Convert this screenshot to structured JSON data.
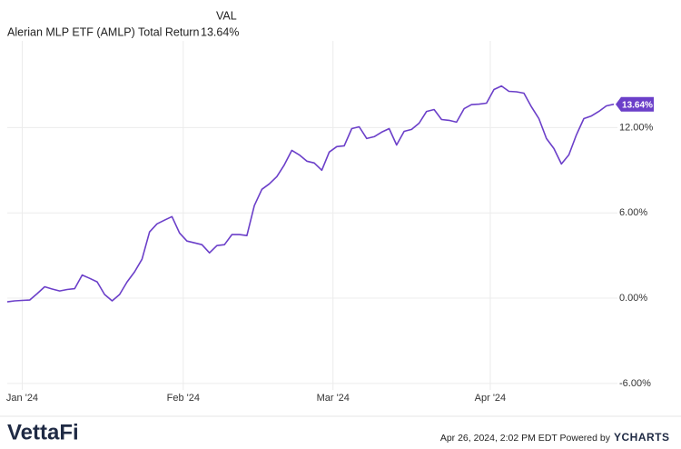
{
  "chart_data": {
    "type": "line",
    "legend_header": "VAL",
    "footer": {
      "timestamp": "Apr 26, 2024, 2:02 PM EDT Powered by",
      "brand": "YCHARTS",
      "logo": "VettaFi"
    },
    "series": [
      {
        "name": "Alerian MLP ETF (AMLP) Total Return",
        "color": "#6b3fc9",
        "last_label": "13.64%",
        "values": [
          -0.26,
          -0.19,
          -0.16,
          -0.13,
          0.32,
          0.8,
          0.64,
          0.51,
          0.61,
          0.67,
          1.63,
          1.4,
          1.15,
          0.26,
          -0.19,
          0.26,
          1.15,
          1.85,
          2.74,
          4.66,
          5.23,
          5.49,
          5.74,
          4.59,
          4.02,
          3.89,
          3.76,
          3.19,
          3.7,
          3.76,
          4.47,
          4.47,
          4.4,
          6.51,
          7.66,
          8.04,
          8.55,
          9.38,
          10.4,
          10.08,
          9.64,
          9.51,
          9.0,
          10.28,
          10.66,
          10.72,
          11.93,
          12.06,
          11.23,
          11.36,
          11.68,
          11.93,
          10.78,
          11.74,
          11.87,
          12.31,
          13.14,
          13.27,
          12.57,
          12.51,
          12.38,
          13.33,
          13.62,
          13.65,
          13.72,
          14.68,
          14.93,
          14.55,
          14.52,
          14.42,
          13.46,
          12.63,
          11.23,
          10.53,
          9.44,
          10.08,
          11.49,
          12.63,
          12.82,
          13.14,
          13.53,
          13.64
        ]
      }
    ],
    "xlim": [
      0,
      81
    ],
    "xticks": [
      {
        "value": 2,
        "label": "Jan '24"
      },
      {
        "value": 23.5,
        "label": "Feb '24"
      },
      {
        "value": 43.5,
        "label": "Mar '24"
      },
      {
        "value": 64.5,
        "label": "Apr '24"
      }
    ],
    "ylim": [
      -6.2,
      18.1
    ],
    "yticks": [
      {
        "value": -6,
        "label": "-6.00%"
      },
      {
        "value": 0,
        "label": "0.00%"
      },
      {
        "value": 6,
        "label": "6.00%"
      },
      {
        "value": 12,
        "label": "12.00%"
      }
    ],
    "grid": true
  }
}
